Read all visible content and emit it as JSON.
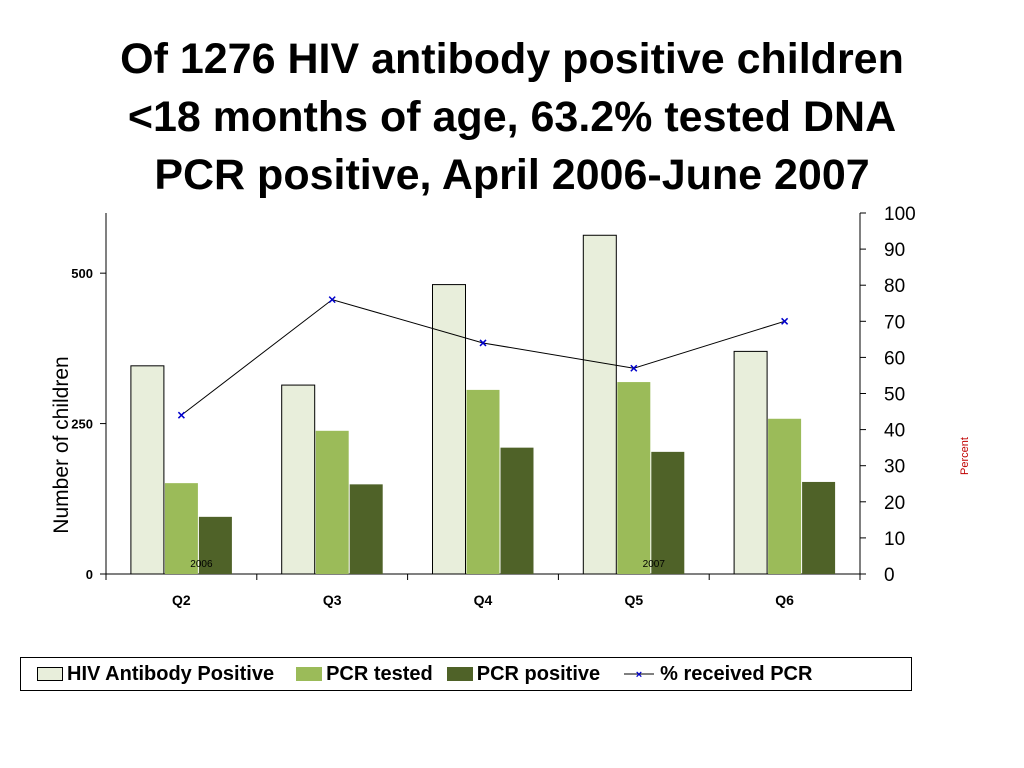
{
  "title": {
    "line1": "Of 1276 HIV antibody positive children",
    "line2": "<18 months of age, 63.2% tested DNA",
    "line3": "PCR positive, April 2006-June 2007"
  },
  "chart_data": {
    "type": "bar",
    "categories": [
      "Q2",
      "Q3",
      "Q4",
      "Q5",
      "Q6"
    ],
    "year_labels": [
      {
        "label": "2006",
        "category": "Q2"
      },
      {
        "label": "2007",
        "category": "Q5"
      }
    ],
    "series": [
      {
        "name": "HIV Antibody Positive",
        "type": "bar",
        "axis": "left",
        "color": "#e8eedb",
        "values": [
          346,
          314,
          481,
          563,
          370
        ]
      },
      {
        "name": "PCR tested",
        "type": "bar",
        "axis": "left",
        "color": "#9bbb59",
        "values": [
          151,
          238,
          306,
          319,
          258
        ]
      },
      {
        "name": "PCR positive",
        "type": "bar",
        "axis": "left",
        "color": "#4f6228",
        "values": [
          95,
          149,
          210,
          203,
          153
        ]
      },
      {
        "name": "% received PCR",
        "type": "line",
        "axis": "right",
        "color": "#000000",
        "marker_color": "#0000cc",
        "values": [
          44,
          76,
          64,
          57,
          70
        ]
      }
    ],
    "ylabel_left": "Number of children",
    "ylabel_right": "Percent",
    "ylim_left": [
      0,
      600
    ],
    "yticks_left": [
      0,
      250,
      500
    ],
    "ylim_right": [
      0,
      100
    ],
    "yticks_right": [
      0,
      10,
      20,
      30,
      40,
      50,
      60,
      70,
      80,
      90,
      100
    ],
    "grid": false,
    "legend_position": "bottom"
  },
  "legend": {
    "items": [
      {
        "label": "HIV Antibody Positive"
      },
      {
        "label": "PCR tested"
      },
      {
        "label": "PCR positive"
      },
      {
        "label": "% received PCR"
      }
    ]
  }
}
